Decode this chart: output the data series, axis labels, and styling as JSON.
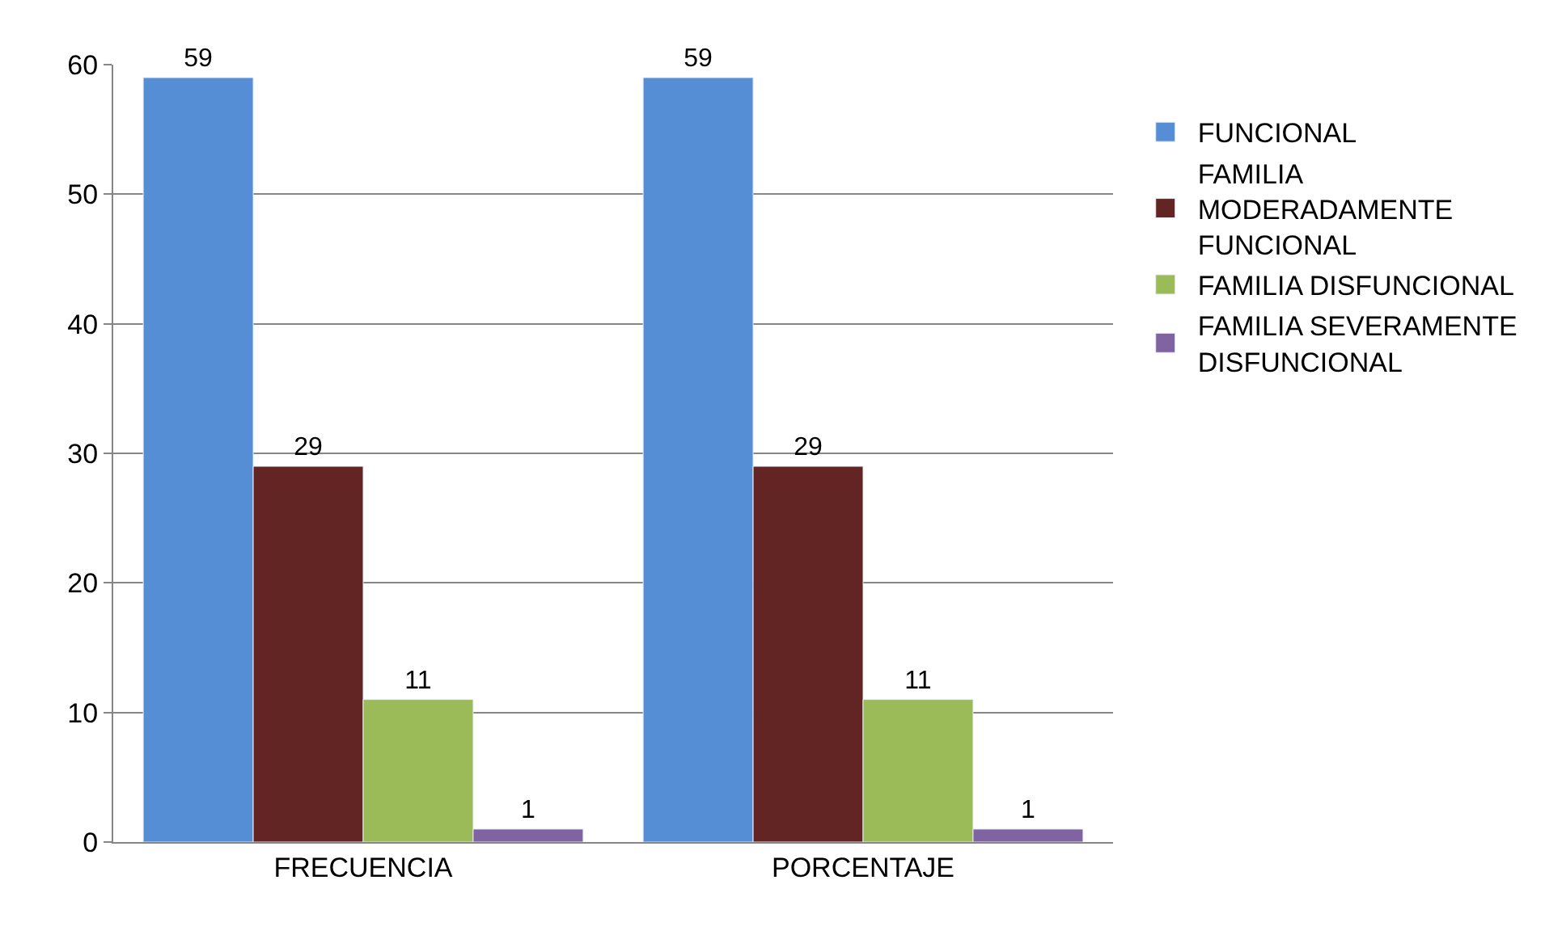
{
  "chart_data": {
    "type": "bar",
    "categories": [
      "FRECUENCIA",
      "PORCENTAJE"
    ],
    "series": [
      {
        "name": "FUNCIONAL",
        "color": "#558ed5",
        "values": [
          59,
          59
        ]
      },
      {
        "name": "FAMILIA MODERADAMENTE FUNCIONAL",
        "color": "#632523",
        "values": [
          29,
          29
        ]
      },
      {
        "name": "FAMILIA DISFUNCIONAL",
        "color": "#9bbb59",
        "values": [
          11,
          11
        ]
      },
      {
        "name": "FAMILIA SEVERAMENTE DISFUNCIONAL",
        "color": "#8064a2",
        "values": [
          1,
          1
        ]
      }
    ],
    "ylim": [
      0,
      60
    ],
    "yticks": [
      0,
      10,
      20,
      30,
      40,
      50,
      60
    ],
    "grid": "y",
    "legend": "right",
    "data_labels": true
  }
}
